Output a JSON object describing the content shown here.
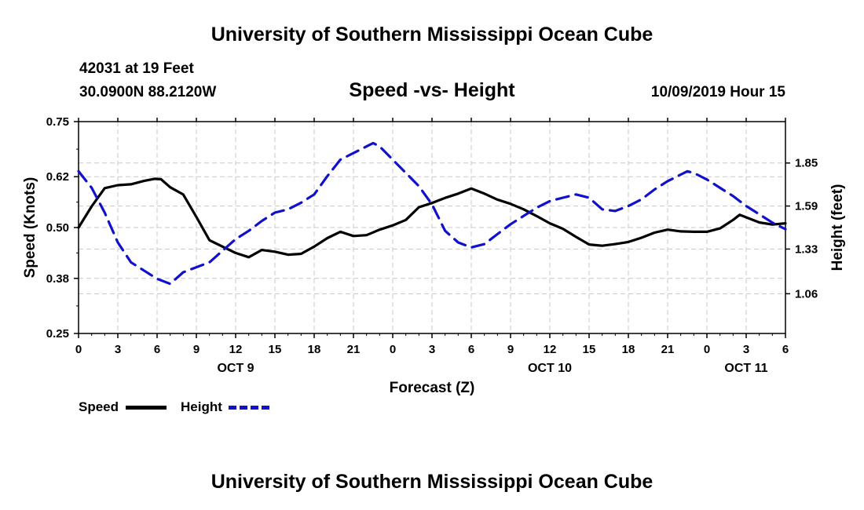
{
  "header": {
    "title": "University of Southern Mississippi Ocean Cube",
    "station": "42031 at 19 Feet",
    "coords": "30.0900N 88.2120W",
    "subtitle": "Speed -vs- Height",
    "datetime": "10/09/2019 Hour 15"
  },
  "footer": {
    "title": "University of Southern Mississippi Ocean Cube"
  },
  "legend": {
    "speed_label": "Speed",
    "height_label": "Height"
  },
  "chart_data": {
    "type": "line",
    "title": "Speed -vs- Height",
    "xlabel": "Forecast (Z)",
    "ylabel_left": "Speed (Knots)",
    "ylabel_right": "Height (feet)",
    "x_unit": "hours from Oct 9 00Z",
    "xlim": [
      0,
      54
    ],
    "x_ticks": [
      0,
      3,
      6,
      9,
      12,
      15,
      18,
      21,
      24,
      27,
      30,
      33,
      36,
      39,
      42,
      45,
      48,
      51,
      54
    ],
    "x_tick_labels": [
      "0",
      "3",
      "6",
      "9",
      "12",
      "15",
      "18",
      "21",
      "0",
      "3",
      "6",
      "9",
      "12",
      "15",
      "18",
      "21",
      "0",
      "3",
      "6"
    ],
    "date_labels": [
      {
        "text": "OCT 9",
        "x": 12
      },
      {
        "text": "OCT 10",
        "x": 36
      },
      {
        "text": "OCT 11",
        "x": 51
      }
    ],
    "ylim_left": [
      0.25,
      0.75
    ],
    "y_ticks_left": [
      0.25,
      0.38,
      0.5,
      0.62,
      0.75
    ],
    "y_tick_labels_left": [
      "0.25",
      "0.38",
      "0.50",
      "0.62",
      "0.75"
    ],
    "ylim_right": [
      0.82,
      2.1
    ],
    "y_ticks_right": [
      1.06,
      1.33,
      1.59,
      1.85
    ],
    "y_tick_labels_right": [
      "1.06",
      "1.33",
      "1.59",
      "1.85"
    ],
    "grid": true,
    "series": [
      {
        "name": "Speed",
        "axis": "left",
        "color": "#000000",
        "dash": "solid",
        "x": [
          0,
          1,
          2,
          3,
          4,
          5,
          5.8,
          6.3,
          7,
          8,
          9,
          10,
          11,
          12,
          13,
          14,
          15,
          16,
          17,
          18,
          19,
          20,
          21,
          22,
          23,
          24,
          25,
          26,
          27,
          28,
          29,
          30,
          31,
          32,
          33,
          34,
          35,
          36,
          37,
          38,
          39,
          40,
          41,
          42,
          43,
          44,
          45,
          46,
          47,
          48,
          49,
          50,
          50.5,
          51,
          52,
          53,
          54
        ],
        "values": [
          0.5,
          0.55,
          0.593,
          0.6,
          0.602,
          0.61,
          0.615,
          0.614,
          0.595,
          0.578,
          0.525,
          0.47,
          0.455,
          0.44,
          0.43,
          0.447,
          0.443,
          0.436,
          0.438,
          0.455,
          0.475,
          0.49,
          0.48,
          0.482,
          0.495,
          0.505,
          0.518,
          0.548,
          0.558,
          0.57,
          0.58,
          0.592,
          0.58,
          0.566,
          0.556,
          0.543,
          0.527,
          0.51,
          0.497,
          0.478,
          0.46,
          0.457,
          0.461,
          0.466,
          0.476,
          0.488,
          0.495,
          0.491,
          0.49,
          0.49,
          0.498,
          0.518,
          0.53,
          0.524,
          0.512,
          0.507,
          0.51
        ]
      },
      {
        "name": "Height",
        "axis": "right",
        "color": "#1111cc",
        "dash": "dashed",
        "x": [
          0,
          1,
          2,
          3,
          4,
          5,
          6,
          7,
          8,
          9,
          10,
          11,
          12,
          13,
          14,
          15,
          16,
          17,
          18,
          19,
          20,
          21,
          22,
          22.5,
          23,
          24,
          25,
          26,
          27,
          28,
          29,
          30,
          31,
          32,
          33,
          34,
          35,
          36,
          37,
          38,
          39,
          40,
          41,
          42,
          43,
          44,
          45,
          46,
          46.5,
          47,
          48,
          49,
          50,
          51,
          52,
          53,
          54
        ],
        "values": [
          1.8,
          1.7,
          1.55,
          1.37,
          1.25,
          1.2,
          1.15,
          1.12,
          1.19,
          1.22,
          1.25,
          1.32,
          1.39,
          1.44,
          1.5,
          1.55,
          1.57,
          1.61,
          1.66,
          1.77,
          1.87,
          1.91,
          1.95,
          1.97,
          1.95,
          1.87,
          1.79,
          1.71,
          1.6,
          1.44,
          1.37,
          1.34,
          1.36,
          1.42,
          1.48,
          1.53,
          1.58,
          1.62,
          1.64,
          1.66,
          1.64,
          1.57,
          1.56,
          1.59,
          1.63,
          1.69,
          1.74,
          1.78,
          1.8,
          1.79,
          1.75,
          1.7,
          1.65,
          1.59,
          1.54,
          1.49,
          1.45
        ]
      }
    ]
  }
}
